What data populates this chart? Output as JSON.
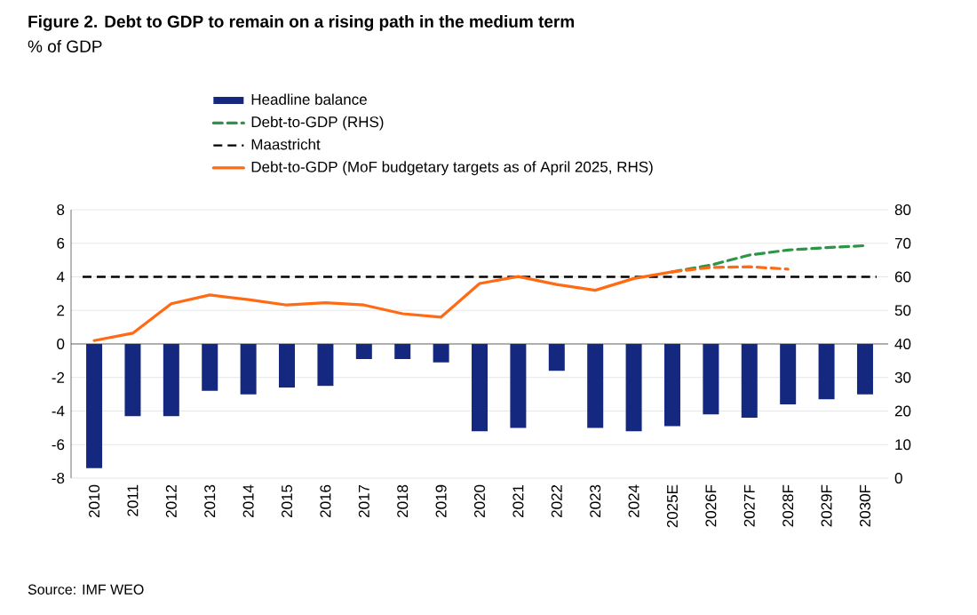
{
  "chart_data": {
    "type": "bar",
    "title": "Figure 2. Debt to GDP to remain on a rising path in the medium term",
    "subtitle": "% of GDP",
    "categories": [
      "2010",
      "2011",
      "2012",
      "2013",
      "2014",
      "2015",
      "2016",
      "2017",
      "2018",
      "2019",
      "2020",
      "2021",
      "2022",
      "2023",
      "2024",
      "2025E",
      "2026F",
      "2027F",
      "2028F",
      "2029F",
      "2030F"
    ],
    "series": [
      {
        "name": "Headline balance",
        "color": "#14287f",
        "values": [
          -7.4,
          -4.3,
          -4.3,
          -2.8,
          -3.0,
          -2.6,
          -2.5,
          -0.9,
          -0.9,
          -1.1,
          -5.2,
          -5.0,
          -1.6,
          -5.0,
          -5.2,
          -4.9,
          -4.2,
          -4.4,
          -3.6,
          -3.3,
          -3.0
        ]
      },
      {
        "name": "Debt-to-GDP (RHS)",
        "type": "line",
        "axis": "y2",
        "color": "#2e9447",
        "line_style": "dashed",
        "values": [
          null,
          null,
          null,
          null,
          null,
          null,
          null,
          null,
          null,
          null,
          null,
          null,
          null,
          null,
          null,
          61.5,
          63.5,
          66.5,
          68.0,
          68.7,
          69.3
        ]
      },
      {
        "name": "Debt-to-GDP (MoF budgetary targets as of April 2025, RHS)",
        "type": "line",
        "axis": "y2",
        "color": "#ff6a13",
        "line_style": "solid",
        "values": [
          41.0,
          43.2,
          52.0,
          54.6,
          53.2,
          51.6,
          52.3,
          51.6,
          49.0,
          48.0,
          58.0,
          60.1,
          57.7,
          56.0,
          59.5,
          61.5,
          null,
          null,
          null,
          null,
          null
        ]
      },
      {
        "type": "line",
        "axis": "y2",
        "color": "#ff6a13",
        "line_style": "dashed",
        "values": [
          null,
          null,
          null,
          null,
          null,
          null,
          null,
          null,
          null,
          null,
          null,
          null,
          null,
          null,
          null,
          61.5,
          62.8,
          63.0,
          62.3,
          null,
          null
        ]
      }
    ],
    "ylim": [
      -8,
      8
    ],
    "yticks": [
      -8,
      -6,
      -4,
      -2,
      0,
      2,
      4,
      6,
      8
    ],
    "y2lim": [
      0,
      80
    ],
    "y2ticks": [
      0,
      10,
      20,
      30,
      40,
      50,
      60,
      70,
      80
    ],
    "ref_lines": [
      {
        "axis": "y2",
        "value": 60,
        "label": "Maastricht",
        "color": "#000000",
        "line_style": "dashed"
      }
    ],
    "grid": "y",
    "legend": "top",
    "annotations": [
      "Source: IMF WEO"
    ]
  }
}
